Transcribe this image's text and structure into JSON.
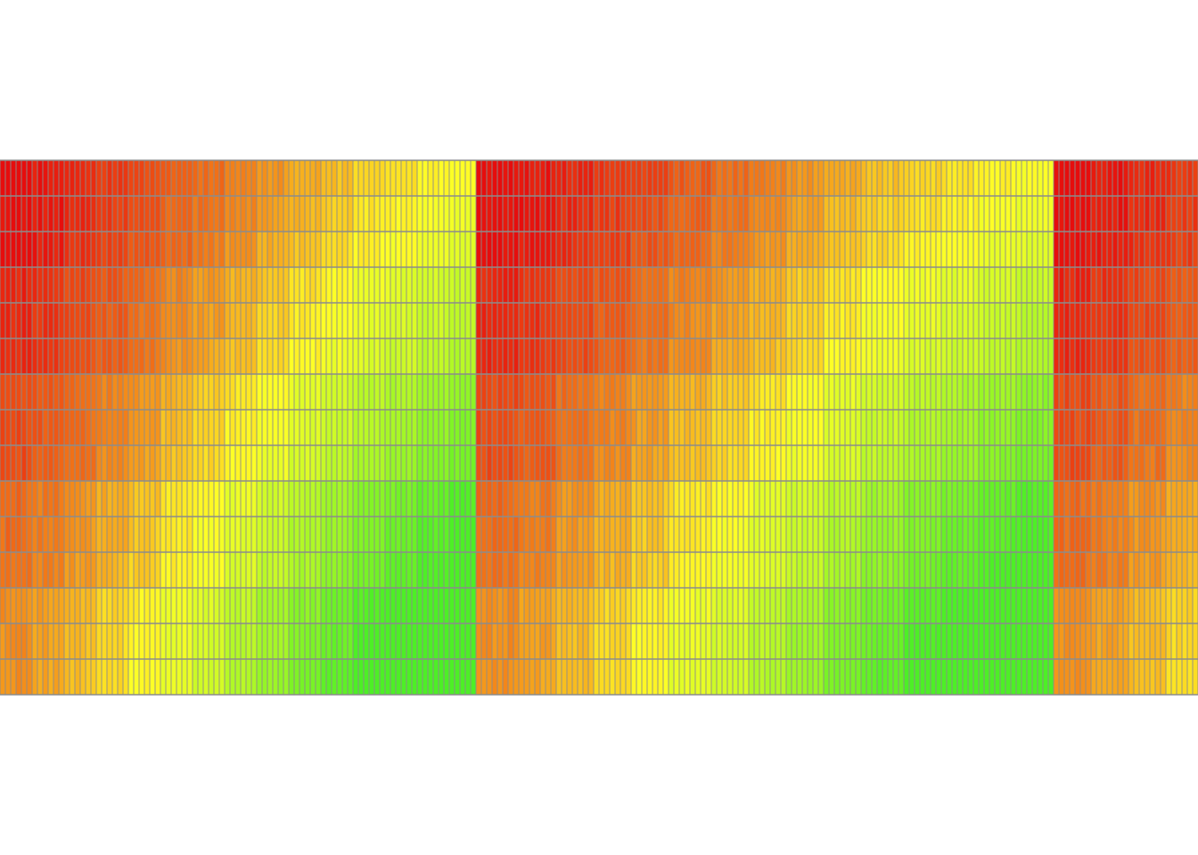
{
  "chart_data": {
    "type": "heatmap",
    "title": "",
    "xlabel": "",
    "ylabel": "",
    "grid": true,
    "legend": "none",
    "n_rows": 15,
    "n_cols": 224,
    "value_range": [
      0,
      1
    ],
    "colormap": {
      "low": "#e60d0d",
      "mid": "#ffff26",
      "high": "#4def26"
    },
    "grid_color": "#8c8c8c",
    "background": "#ffffff",
    "groups": [
      {
        "start_col": 0,
        "n_cols": 89,
        "base_values": [
          0.0,
          0.04,
          0.1,
          0.16,
          0.22,
          0.3,
          0.36,
          0.44,
          0.52,
          0.6,
          0.68,
          0.76,
          0.82,
          0.88,
          0.93
        ],
        "row_gain": 0.012
      },
      {
        "start_col": 89,
        "n_cols": 108,
        "base_values": [
          0.0,
          0.04,
          0.1,
          0.16,
          0.22,
          0.3,
          0.36,
          0.44,
          0.52,
          0.6,
          0.68,
          0.76,
          0.82,
          0.88,
          0.93
        ],
        "row_gain": 0.012
      },
      {
        "start_col": 197,
        "n_cols": 27,
        "base_values": [
          0.0,
          0.04,
          0.1,
          0.16
        ],
        "row_gain": 0.012
      }
    ],
    "row_blocks": [
      {
        "start_row": 0,
        "n_rows": 3,
        "offset": 0.0
      },
      {
        "start_row": 3,
        "n_rows": 3,
        "offset": 0.04
      },
      {
        "start_row": 6,
        "n_rows": 3,
        "offset": 0.1
      },
      {
        "start_row": 9,
        "n_rows": 3,
        "offset": 0.16
      },
      {
        "start_row": 12,
        "n_rows": 3,
        "offset": 0.22
      }
    ]
  }
}
